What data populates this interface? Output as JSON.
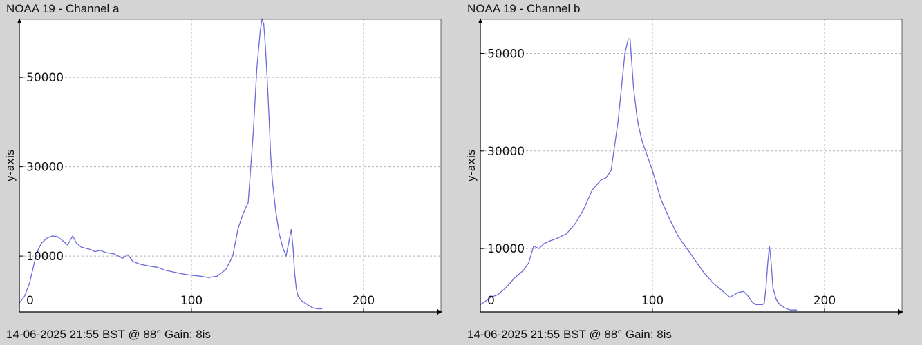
{
  "chart_data": [
    {
      "type": "line",
      "title": "NOAA 19 - Channel a",
      "ylabel": "y-axis",
      "xlabel": "",
      "footer": "14-06-2025 21:55 BST @ 88° Gain: 8is",
      "xlim": [
        0,
        245
      ],
      "ylim": [
        -2500,
        63000
      ],
      "xticks": [
        0,
        100,
        200
      ],
      "yticks": [
        10000,
        30000,
        50000
      ],
      "grid": true,
      "line_color": "#6a6ad8",
      "series": [
        {
          "x": [
            0,
            3,
            6,
            9,
            11,
            13,
            16,
            19,
            22,
            25,
            28,
            31,
            33,
            36,
            38,
            41,
            44,
            47,
            50,
            55,
            60,
            63,
            66,
            70,
            75,
            80,
            85,
            90,
            95,
            100,
            105,
            110,
            115,
            120,
            124,
            127,
            130,
            133,
            136,
            138,
            140,
            141,
            142,
            143,
            144,
            145,
            146,
            147,
            149,
            151,
            153,
            155,
            157,
            158,
            159,
            160,
            161,
            162,
            163,
            164,
            166,
            168,
            170,
            173,
            176
          ],
          "y": [
            -500,
            1000,
            4000,
            9000,
            11500,
            13000,
            14000,
            14500,
            14400,
            13500,
            12500,
            14500,
            13000,
            12000,
            11800,
            11500,
            11000,
            11300,
            10800,
            10500,
            9500,
            10300,
            8800,
            8200,
            7800,
            7500,
            6800,
            6400,
            6000,
            5700,
            5500,
            5200,
            5500,
            7000,
            10000,
            16000,
            19500,
            22000,
            38000,
            52000,
            60500,
            63000,
            62000,
            57000,
            50000,
            42000,
            33000,
            27000,
            20000,
            15000,
            12000,
            10000,
            14000,
            16000,
            12000,
            6000,
            2500,
            1000,
            500,
            0,
            -500,
            -1000,
            -1500,
            -1800,
            -1800
          ]
        }
      ]
    },
    {
      "type": "line",
      "title": "NOAA 19 - Channel b",
      "ylabel": "y-axis",
      "xlabel": "",
      "footer": "14-06-2025 21:55 BST @ 88° Gain: 8is",
      "xlim": [
        0,
        245
      ],
      "ylim": [
        -3000,
        57000
      ],
      "xticks": [
        0,
        100,
        200
      ],
      "yticks": [
        10000,
        30000,
        50000
      ],
      "grid": true,
      "line_color": "#6a6ad8",
      "series": [
        {
          "x": [
            0,
            3,
            6,
            10,
            15,
            20,
            25,
            28,
            31,
            34,
            37,
            40,
            44,
            47,
            50,
            55,
            60,
            65,
            70,
            73,
            76,
            80,
            84,
            86,
            87,
            88,
            89,
            90,
            91,
            92,
            94,
            96,
            98,
            100,
            105,
            110,
            115,
            120,
            125,
            130,
            135,
            140,
            145,
            150,
            153,
            155,
            158,
            160,
            162,
            164,
            165,
            166,
            167,
            168,
            169,
            170,
            172,
            174,
            177,
            180,
            184
          ],
          "y": [
            -1500,
            -800,
            0,
            500,
            2000,
            4000,
            5500,
            7000,
            10500,
            10000,
            11000,
            11500,
            12000,
            12500,
            13000,
            15000,
            18000,
            22000,
            24000,
            24500,
            26000,
            36000,
            50000,
            53000,
            53000,
            48000,
            43000,
            40000,
            37000,
            35000,
            32000,
            30000,
            28000,
            26000,
            20000,
            16000,
            12500,
            10000,
            7500,
            5000,
            3000,
            1500,
            0,
            1000,
            1200,
            500,
            -1000,
            -1500,
            -1500,
            -1500,
            -1200,
            2000,
            7000,
            10500,
            7000,
            2000,
            -500,
            -1500,
            -2200,
            -2600,
            -2600
          ]
        }
      ]
    }
  ]
}
